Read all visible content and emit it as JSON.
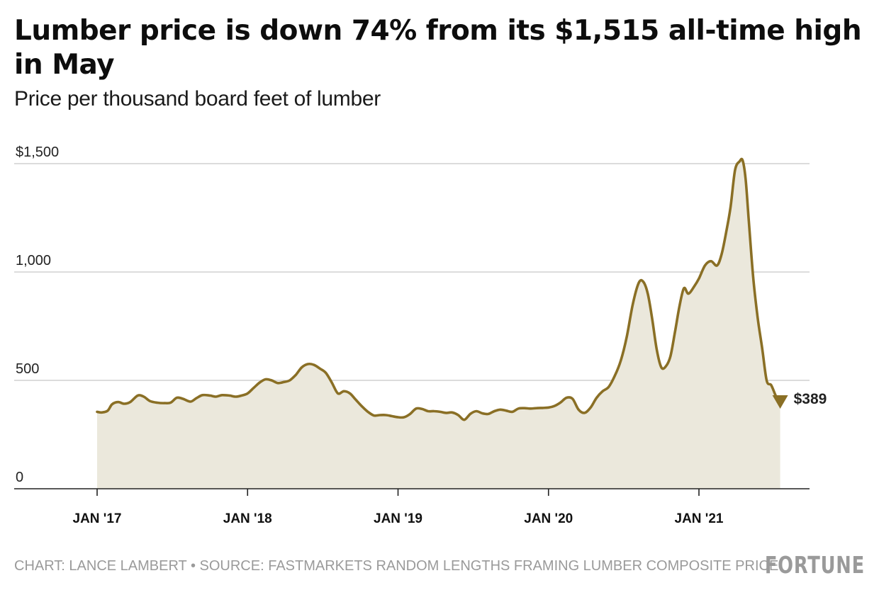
{
  "title": "Lumber price is down 74% from its $1,515 all-time high in May",
  "subtitle": "Price per thousand board feet of lumber",
  "credit": "CHART: LANCE LAMBERT • SOURCE: FASTMARKETS RANDOM LENGTHS FRAMING LUMBER COMPOSITE PRICE",
  "brand": "FORTUNE",
  "colors": {
    "line": "#8a6f25",
    "area": "#ebe8dc",
    "grid": "#c8c8c8",
    "axis": "#222222",
    "text": "#111111",
    "muted": "#9a9a9a"
  },
  "chart_data": {
    "type": "area",
    "ylim": [
      0,
      1500
    ],
    "xlim": [
      2016.95,
      2021.78
    ],
    "grid": true,
    "y_ticks": [
      {
        "value": 0,
        "label": "0"
      },
      {
        "value": 500,
        "label": "500"
      },
      {
        "value": 1000,
        "label": "1,000"
      },
      {
        "value": 1500,
        "label": "$1,500"
      }
    ],
    "x_ticks": [
      {
        "value": 2017.0,
        "label": "JAN '17"
      },
      {
        "value": 2018.0,
        "label": "JAN '18"
      },
      {
        "value": 2019.0,
        "label": "JAN '19"
      },
      {
        "value": 2020.0,
        "label": "JAN '20"
      },
      {
        "value": 2021.0,
        "label": "JAN '21"
      }
    ],
    "end_label": "$389",
    "series": [
      {
        "values": [
          [
            2017.0,
            355
          ],
          [
            2017.03,
            352
          ],
          [
            2017.07,
            360
          ],
          [
            2017.1,
            390
          ],
          [
            2017.14,
            400
          ],
          [
            2017.18,
            392
          ],
          [
            2017.22,
            400
          ],
          [
            2017.27,
            430
          ],
          [
            2017.31,
            425
          ],
          [
            2017.35,
            405
          ],
          [
            2017.4,
            397
          ],
          [
            2017.45,
            395
          ],
          [
            2017.49,
            398
          ],
          [
            2017.53,
            420
          ],
          [
            2017.57,
            415
          ],
          [
            2017.62,
            402
          ],
          [
            2017.66,
            418
          ],
          [
            2017.7,
            432
          ],
          [
            2017.75,
            430
          ],
          [
            2017.79,
            425
          ],
          [
            2017.83,
            432
          ],
          [
            2017.88,
            430
          ],
          [
            2017.92,
            425
          ],
          [
            2017.96,
            430
          ],
          [
            2018.0,
            440
          ],
          [
            2018.04,
            465
          ],
          [
            2018.08,
            490
          ],
          [
            2018.12,
            505
          ],
          [
            2018.16,
            500
          ],
          [
            2018.2,
            488
          ],
          [
            2018.24,
            492
          ],
          [
            2018.28,
            500
          ],
          [
            2018.32,
            525
          ],
          [
            2018.36,
            560
          ],
          [
            2018.4,
            575
          ],
          [
            2018.44,
            572
          ],
          [
            2018.48,
            555
          ],
          [
            2018.52,
            535
          ],
          [
            2018.56,
            490
          ],
          [
            2018.6,
            440
          ],
          [
            2018.64,
            450
          ],
          [
            2018.68,
            440
          ],
          [
            2018.72,
            410
          ],
          [
            2018.76,
            380
          ],
          [
            2018.8,
            355
          ],
          [
            2018.84,
            338
          ],
          [
            2018.88,
            340
          ],
          [
            2018.92,
            340
          ],
          [
            2018.96,
            335
          ],
          [
            2019.0,
            330
          ],
          [
            2019.04,
            330
          ],
          [
            2019.08,
            345
          ],
          [
            2019.12,
            370
          ],
          [
            2019.16,
            368
          ],
          [
            2019.2,
            358
          ],
          [
            2019.24,
            358
          ],
          [
            2019.28,
            355
          ],
          [
            2019.32,
            350
          ],
          [
            2019.36,
            352
          ],
          [
            2019.4,
            340
          ],
          [
            2019.44,
            318
          ],
          [
            2019.48,
            345
          ],
          [
            2019.52,
            358
          ],
          [
            2019.56,
            348
          ],
          [
            2019.6,
            345
          ],
          [
            2019.64,
            358
          ],
          [
            2019.68,
            365
          ],
          [
            2019.72,
            360
          ],
          [
            2019.76,
            355
          ],
          [
            2019.8,
            370
          ],
          [
            2019.84,
            372
          ],
          [
            2019.88,
            370
          ],
          [
            2019.92,
            372
          ],
          [
            2019.96,
            373
          ],
          [
            2020.0,
            375
          ],
          [
            2020.04,
            382
          ],
          [
            2020.08,
            398
          ],
          [
            2020.12,
            420
          ],
          [
            2020.16,
            415
          ],
          [
            2020.2,
            365
          ],
          [
            2020.24,
            350
          ],
          [
            2020.28,
            375
          ],
          [
            2020.32,
            420
          ],
          [
            2020.36,
            450
          ],
          [
            2020.4,
            470
          ],
          [
            2020.44,
            520
          ],
          [
            2020.48,
            590
          ],
          [
            2020.52,
            700
          ],
          [
            2020.56,
            850
          ],
          [
            2020.6,
            950
          ],
          [
            2020.63,
            955
          ],
          [
            2020.66,
            900
          ],
          [
            2020.69,
            780
          ],
          [
            2020.72,
            640
          ],
          [
            2020.75,
            560
          ],
          [
            2020.78,
            565
          ],
          [
            2020.81,
            610
          ],
          [
            2020.84,
            720
          ],
          [
            2020.87,
            840
          ],
          [
            2020.9,
            925
          ],
          [
            2020.93,
            900
          ],
          [
            2020.97,
            935
          ],
          [
            2021.0,
            970
          ],
          [
            2021.04,
            1030
          ],
          [
            2021.08,
            1050
          ],
          [
            2021.12,
            1030
          ],
          [
            2021.15,
            1080
          ],
          [
            2021.18,
            1180
          ],
          [
            2021.21,
            1300
          ],
          [
            2021.24,
            1470
          ],
          [
            2021.27,
            1510
          ],
          [
            2021.29,
            1515
          ],
          [
            2021.31,
            1430
          ],
          [
            2021.33,
            1250
          ],
          [
            2021.36,
            980
          ],
          [
            2021.39,
            790
          ],
          [
            2021.42,
            650
          ],
          [
            2021.45,
            500
          ],
          [
            2021.48,
            478
          ],
          [
            2021.51,
            430
          ],
          [
            2021.54,
            389
          ]
        ]
      }
    ]
  }
}
